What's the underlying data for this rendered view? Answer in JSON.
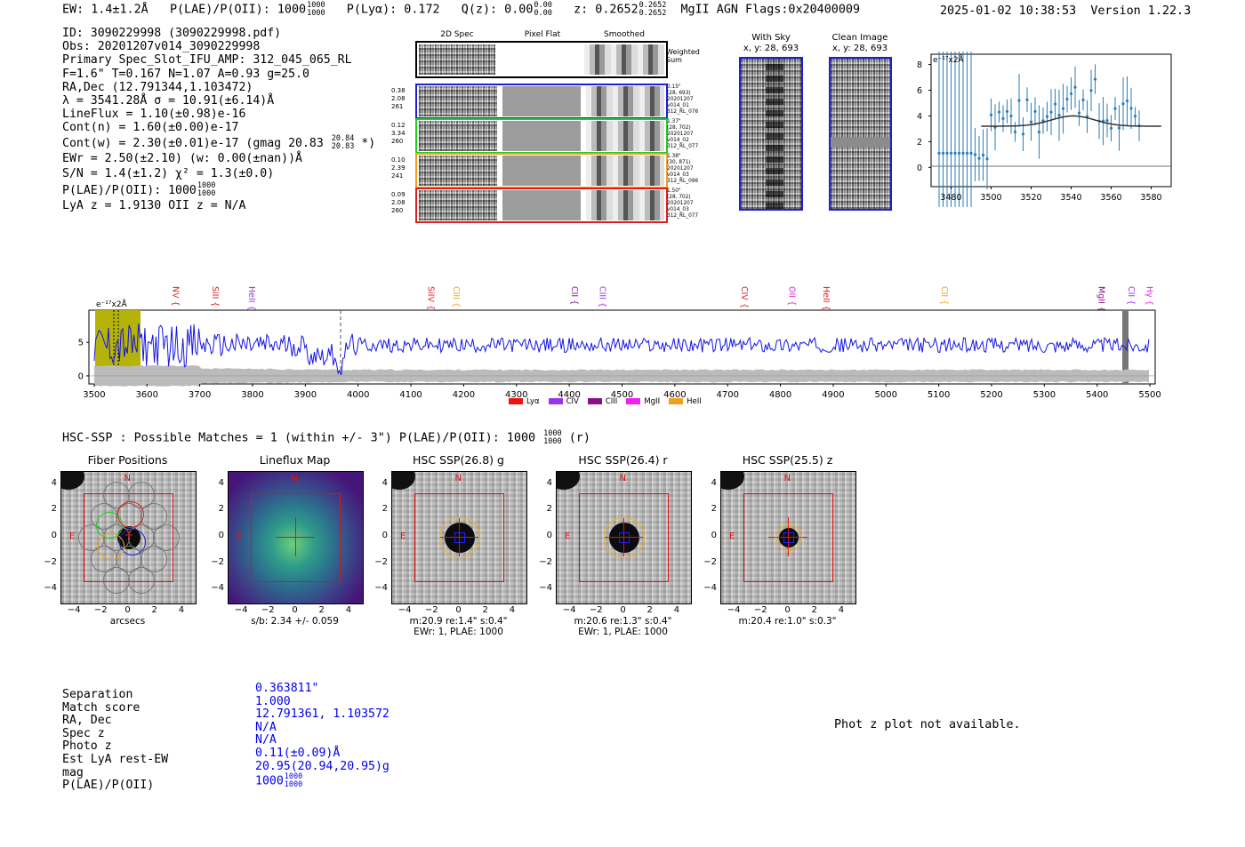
{
  "header": {
    "ew": "EW: 1.4±1.2Å",
    "plae": "P(LAE)/P(OII): 1000",
    "plae_up": "1000",
    "plae_lo": "1000",
    "plya": "P(Lyα): 0.172",
    "qz": "Q(z): 0.00",
    "qz_up": "0.00",
    "qz_lo": "0.00",
    "z": "z: 0.2652",
    "z_up": "0.2652",
    "z_lo": "0.2652",
    "z_tail": "MgII  AGN  Flags:0x20400009",
    "datetime": "2025-01-02 10:38:53",
    "version": "Version 1.22.3"
  },
  "info": {
    "lines": [
      "ID: 3090229998 (3090229998.pdf)",
      "Obs: 20201207v014_3090229998",
      "Primary Spec_Slot_IFU_AMP: 312_045_065_RL",
      "F=1.6\"  T=0.167  N=1.07  A=0.93  g=25.0",
      "RA,Dec (12.791344,1.103472)",
      "λ = 3541.28Å  σ = 10.91(±6.14)Å",
      "LineFlux = 1.10(±0.98)e-16",
      "Cont(n) = 1.60(±0.00)e-17"
    ],
    "contw": "Cont(w) = 2.30(±0.01)e-17 (gmag 20.83",
    "contw_up": "20.84",
    "contw_lo": "20.83",
    "contw_tail": "*)",
    "ewr": "EWr = 2.50(±2.10) (w: 0.00(±nan))Å",
    "sn": "S/N = 1.4(±1.2)  χ² = 1.3(±0.0)",
    "plae": "P(LAE)/P(OII): 1000",
    "plae_up": "1000",
    "plae_lo": "1000",
    "lya": "LyA z = 1.9130  OII z = N/A"
  },
  "spec2d": {
    "col_labels": [
      "2D Spec",
      "Pixel Flat",
      "Smoothed"
    ],
    "weighted_sum": "Weighted Sum",
    "rows": [
      {
        "left": [
          "0.38",
          "2.08",
          "261"
        ],
        "right": [
          "0.15\"",
          "(28, 693)",
          "20201207",
          "v014_01",
          "312_RL_076"
        ],
        "color": "#1f1fd6"
      },
      {
        "left": [
          "0.12",
          "3.34",
          "260"
        ],
        "right": [
          "1.37\"",
          "(28, 702)",
          "20201207",
          "v014_02",
          "312_RL_077"
        ],
        "color": "#22cc22"
      },
      {
        "left": [
          "0.10",
          "2.39",
          "241"
        ],
        "right": [
          "1.38\"",
          "(30, 871)",
          "20201207",
          "v014_03",
          "312_RL_096"
        ],
        "color": "#f0a020"
      },
      {
        "left": [
          "0.09",
          "2.08",
          "260"
        ],
        "right": [
          "1.50\"",
          "(28, 702)",
          "20201207",
          "v014_03",
          "312_RL_077"
        ],
        "color": "#e01f1f"
      }
    ]
  },
  "stamps": {
    "with_sky_title": "With Sky",
    "with_sky_xy": "x, y: 28, 693",
    "clean_title": "Clean Image",
    "clean_xy": "x, y: 28, 693"
  },
  "zoom_plot": {
    "ylabel": "e⁻¹⁷x2Å",
    "xticks": [
      "3480",
      "3500",
      "3520",
      "3540",
      "3560",
      "3580"
    ],
    "yticks": [
      "8",
      "6",
      "4",
      "2",
      "0"
    ]
  },
  "full_spectrum": {
    "ylabel": "e⁻¹⁷x2Å",
    "yticks": [
      "5",
      "0"
    ],
    "xticks": [
      "3500",
      "3600",
      "3700",
      "3800",
      "3900",
      "4000",
      "4100",
      "4200",
      "4300",
      "4400",
      "4500",
      "4600",
      "4700",
      "4800",
      "4900",
      "5000",
      "5100",
      "5200",
      "5300",
      "5400",
      "5500"
    ],
    "lines": [
      {
        "name": "NV",
        "color": "#e01f1f"
      },
      {
        "name": "SiII",
        "color": "#e01f1f"
      },
      {
        "name": "HeII",
        "color": "#9933ee"
      },
      {
        "name": "SiIV",
        "color": "#e01f1f"
      },
      {
        "name": "CIII",
        "color": "#f0a020"
      },
      {
        "name": "CII",
        "color": "#881188"
      },
      {
        "name": "CIII",
        "color": "#9933ee"
      },
      {
        "name": "CIV",
        "color": "#e01f1f"
      },
      {
        "name": "OII",
        "color": "#ee22ee"
      },
      {
        "name": "HeII",
        "color": "#e01f1f"
      },
      {
        "name": "CII",
        "color": "#f0a020"
      },
      {
        "name": "MgII",
        "color": "#881188"
      },
      {
        "name": "CII",
        "color": "#9933ee"
      },
      {
        "name": "Hγ",
        "color": "#ee22ee"
      }
    ],
    "legend": [
      {
        "name": "Lyα",
        "color": "#ee1111"
      },
      {
        "name": "CIV",
        "color": "#9933ee"
      },
      {
        "name": "CIII",
        "color": "#881188"
      },
      {
        "name": "MgII",
        "color": "#ee22ee"
      },
      {
        "name": "HeII",
        "color": "#f0a020"
      }
    ]
  },
  "hsc": {
    "heading": "HSC-SSP : Possible Matches = 1 (within +/- 3\")  P(LAE)/P(OII): 1000",
    "heading_up": "1000",
    "heading_lo": "1000",
    "heading_tail": "(r)",
    "panels": [
      {
        "title": "Fiber Positions",
        "caption": "arcsecs",
        "caption2": ""
      },
      {
        "title": "Lineflux Map",
        "caption": "s/b: 2.34 +/- 0.059",
        "caption2": ""
      },
      {
        "title": "HSC SSP(26.8) g",
        "caption": "m:20.9  re:1.4\"  s:0.4\"",
        "caption2": "EWr: 1, PLAE: 1000"
      },
      {
        "title": "HSC SSP(26.4) r",
        "caption": "m:20.6  re:1.3\"  s:0.4\"",
        "caption2": "EWr: 1, PLAE: 1000"
      },
      {
        "title": "HSC SSP(25.5) z",
        "caption": "m:20.4  re:1.0\"  s:0.3\"",
        "caption2": ""
      }
    ],
    "ticks": [
      "4",
      "2",
      "0",
      "−2",
      "−4"
    ],
    "xticks": [
      "−4",
      "−2",
      "0",
      "2",
      "4"
    ],
    "compass_n": "N",
    "compass_e": "E"
  },
  "match": {
    "labels": [
      "Separation",
      "Match score",
      "RA, Dec",
      "Spec z",
      "Photo z",
      "Est LyA rest-EW",
      "mag",
      "P(LAE)/P(OII)"
    ],
    "values": [
      "0.363811\"",
      "1.000",
      "12.791361, 1.103572",
      "N/A",
      "N/A",
      "0.11(±0.09)Å",
      "20.95(20.94,20.95)g",
      "1000"
    ],
    "plae_up": "1000",
    "plae_lo": "1000",
    "phot_z_note": "Phot z plot not available."
  }
}
